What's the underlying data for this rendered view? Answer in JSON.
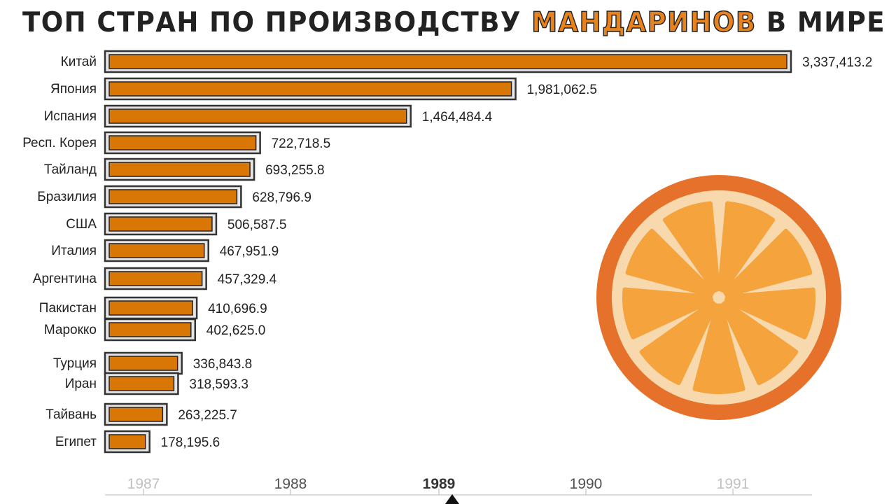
{
  "title": {
    "before": "ТОП СТРАН ПО ПРОИЗВОДСТВУ ",
    "highlight": "МАНДАРИНОВ",
    "after": " В МИРЕ"
  },
  "colors": {
    "bar_fill": "#d97706",
    "bar_border": "#333333",
    "text": "#222222",
    "highlight": "#e8821d",
    "orange_outer": "#e5712a",
    "orange_pith": "#f8d9ad",
    "orange_segment": "#f4a33d"
  },
  "decoration": {
    "icon": "orange-slice-icon"
  },
  "chart_data": {
    "type": "bar",
    "orientation": "horizontal",
    "categories": [
      "Китай",
      "Япония",
      "Испания",
      "Респ. Корея",
      "Тайланд",
      "Бразилия",
      "США",
      "Италия",
      "Аргентина",
      "Пакистан",
      "Марокко",
      "Турция",
      "Иран",
      "Тайвань",
      "Египет"
    ],
    "values": [
      3337413.2,
      1981062.5,
      1464484.4,
      722718.5,
      693255.8,
      628796.9,
      506587.5,
      467951.9,
      457329.4,
      410696.9,
      402625.0,
      336843.8,
      318593.3,
      263225.7,
      178195.6
    ],
    "value_labels": [
      "3,337,413.2",
      "1,981,062.5",
      "1,464,484.4",
      "722,718.5",
      "693,255.8",
      "628,796.9",
      "506,587.5",
      "467,951.9",
      "457,329.4",
      "410,696.9",
      "402,625.0",
      "336,843.8",
      "318,593.3",
      "263,225.7",
      "178,195.6"
    ],
    "xlim": [
      0,
      3337413.2
    ],
    "timeline": {
      "ticks": [
        "1987",
        "1988",
        "1989",
        "1990",
        "1991"
      ],
      "current": "1989"
    }
  }
}
